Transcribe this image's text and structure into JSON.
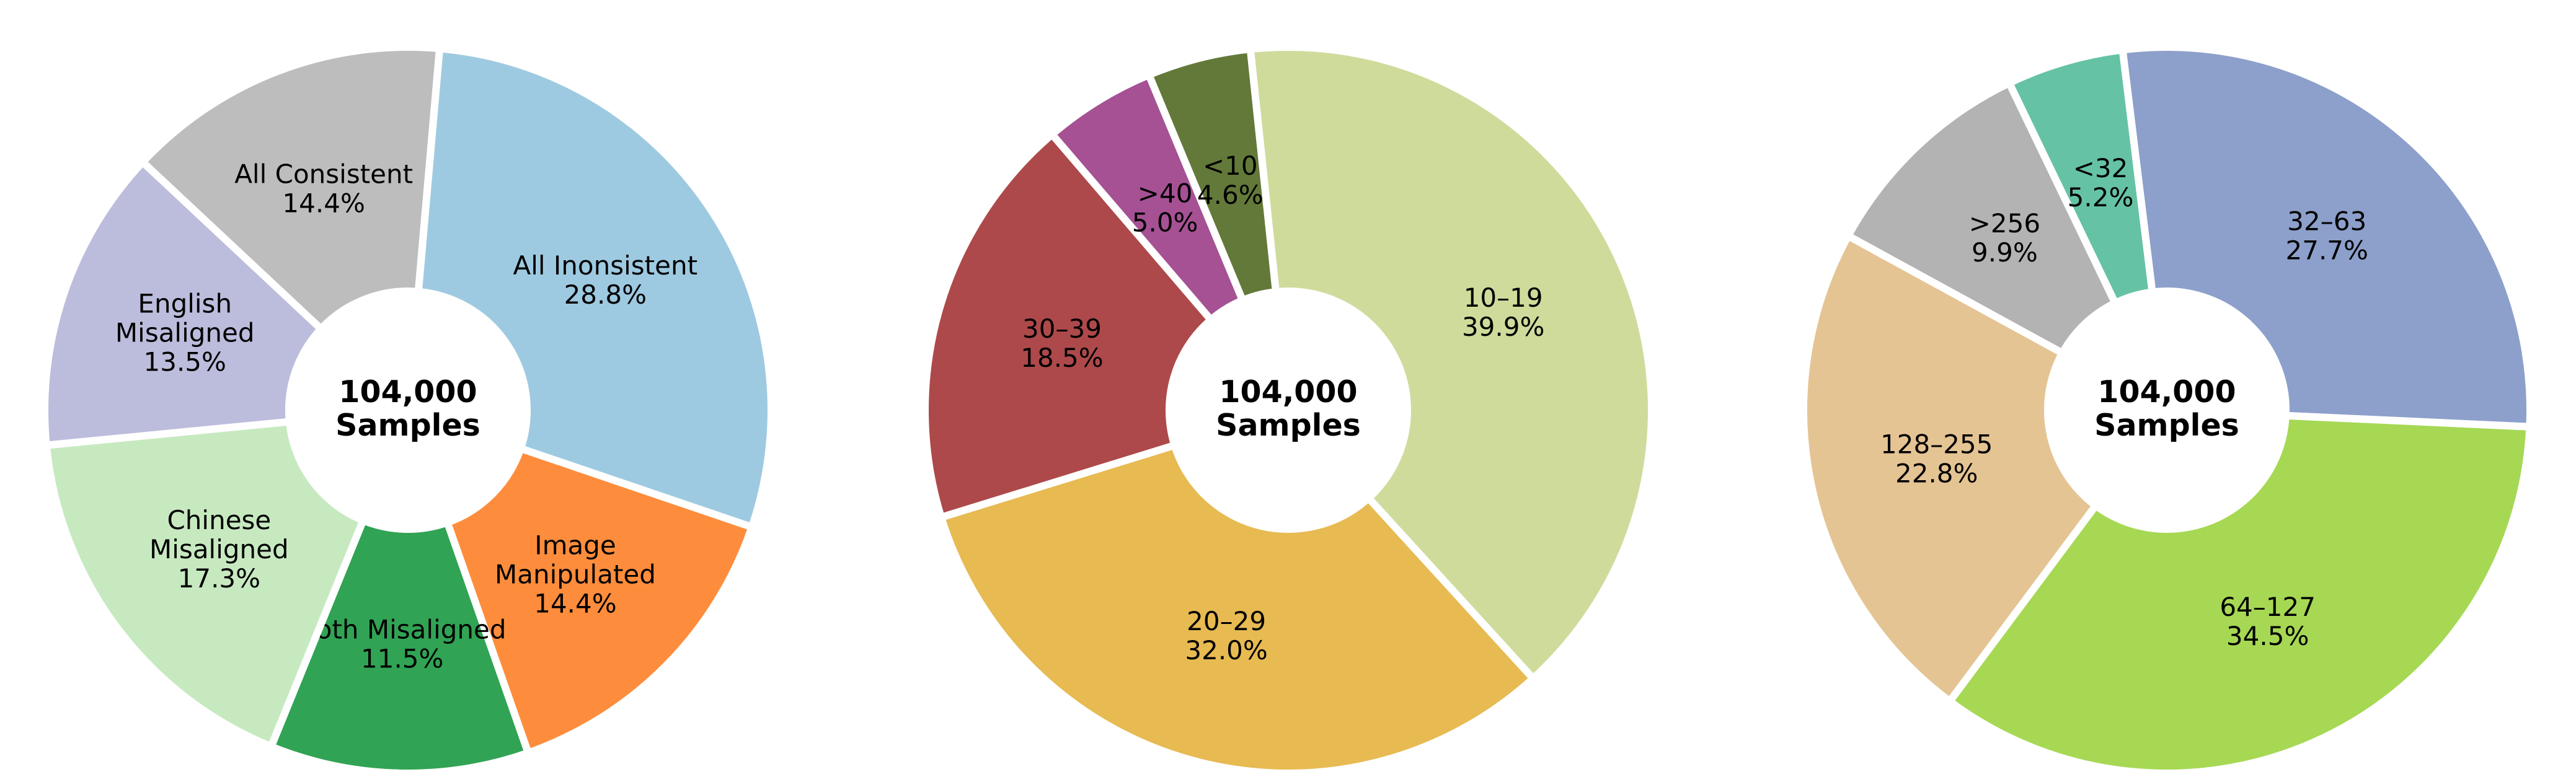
{
  "chart_data": [
    {
      "type": "pie",
      "center_text": [
        "104,000",
        "Samples"
      ],
      "slices": [
        {
          "label": [
            "All Inonsistent"
          ],
          "value": 28.8,
          "pct": "28.8%",
          "color": "#9ecae1"
        },
        {
          "label": [
            "Image",
            "Manipulated"
          ],
          "value": 14.4,
          "pct": "14.4%",
          "color": "#fd8d3c"
        },
        {
          "label": [
            "Both Misaligned"
          ],
          "value": 11.5,
          "pct": "11.5%",
          "color": "#31a354"
        },
        {
          "label": [
            "Chinese",
            "Misaligned"
          ],
          "value": 17.3,
          "pct": "17.3%",
          "color": "#c7e9c0"
        },
        {
          "label": [
            "English",
            "Misaligned"
          ],
          "value": 13.5,
          "pct": "13.5%",
          "color": "#bcbddc"
        },
        {
          "label": [
            "All Consistent"
          ],
          "value": 14.4,
          "pct": "14.4%",
          "color": "#bdbdbd"
        }
      ]
    },
    {
      "type": "pie",
      "center_text": [
        "104,000",
        "Samples"
      ],
      "slices": [
        {
          "label": [
            "10–19"
          ],
          "value": 39.9,
          "pct": "39.9%",
          "color": "#cfdb9b"
        },
        {
          "label": [
            "20–29"
          ],
          "value": 32.0,
          "pct": "32.0%",
          "color": "#e7ba52"
        },
        {
          "label": [
            "30–39"
          ],
          "value": 18.5,
          "pct": "18.5%",
          "color": "#ad494a"
        },
        {
          "label": [
            ">40"
          ],
          "value": 5.0,
          "pct": "5.0%",
          "color": "#a55194"
        },
        {
          "label": [
            "<10"
          ],
          "value": 4.6,
          "pct": "4.6%",
          "color": "#637939"
        }
      ]
    },
    {
      "type": "pie",
      "center_text": [
        "104,000",
        "Samples"
      ],
      "slices": [
        {
          "label": [
            "32–63"
          ],
          "value": 27.7,
          "pct": "27.7%",
          "color": "#8da0cb"
        },
        {
          "label": [
            "64–127"
          ],
          "value": 34.5,
          "pct": "34.5%",
          "color": "#a6d854"
        },
        {
          "label": [
            "128–255"
          ],
          "value": 22.8,
          "pct": "22.8%",
          "color": "#e5c494"
        },
        {
          "label": [
            ">256"
          ],
          "value": 9.9,
          "pct": "9.9%",
          "color": "#b3b3b3"
        },
        {
          "label": [
            "<32"
          ],
          "value": 5.2,
          "pct": "5.2%",
          "color": "#66c2a5"
        }
      ]
    }
  ]
}
